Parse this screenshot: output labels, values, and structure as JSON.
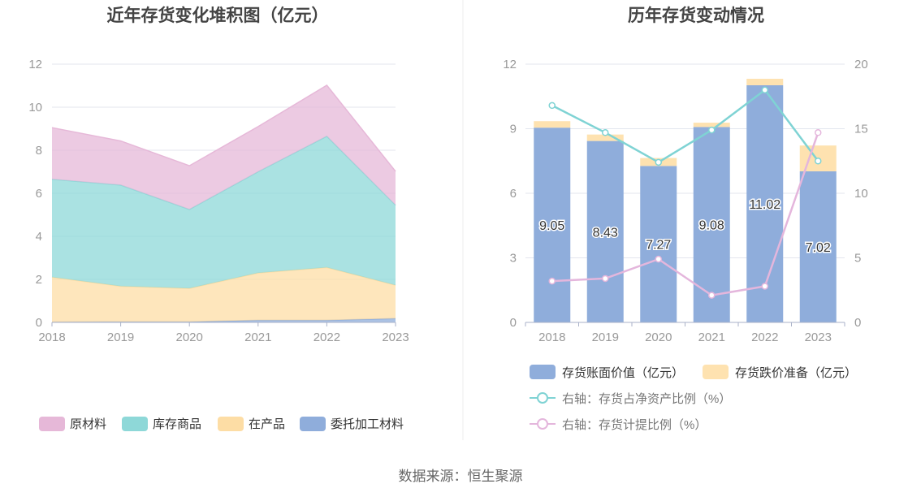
{
  "colors": {
    "raw_material": "#E6B8D8",
    "finished_goods": "#8ED8D8",
    "wip": "#FDDDA5",
    "consigned": "#8FADDB",
    "book_value_bar": "#8FADDB",
    "impairment_bar": "#FEE2B0",
    "ratio_net_assets_line": "#7FD3D4",
    "provision_ratio_line": "#E4B6DC",
    "grid": "#E3E6EE",
    "axis_text": "#999999",
    "divider": "#EEEEEE"
  },
  "source_text": "数据来源：恒生聚源",
  "chart_data": [
    {
      "type": "area",
      "title": "近年存货变化堆积图（亿元）",
      "stacked": true,
      "x": [
        "2018",
        "2019",
        "2020",
        "2021",
        "2022",
        "2023"
      ],
      "ylim": [
        0,
        12
      ],
      "yticks": [
        0,
        2,
        4,
        6,
        8,
        10,
        12
      ],
      "grid": true,
      "legend_position": "bottom",
      "series": [
        {
          "name": "委托加工材料",
          "color_key": "consigned",
          "values": [
            0.02,
            0.03,
            0.03,
            0.1,
            0.1,
            0.18
          ]
        },
        {
          "name": "在产品",
          "color_key": "wip",
          "values": [
            2.08,
            1.65,
            1.55,
            2.2,
            2.45,
            1.55
          ]
        },
        {
          "name": "库存商品",
          "color_key": "finished_goods",
          "values": [
            4.55,
            4.7,
            3.67,
            4.7,
            6.1,
            3.72
          ]
        },
        {
          "name": "原材料",
          "color_key": "raw_material",
          "values": [
            2.4,
            2.05,
            2.03,
            2.1,
            2.37,
            1.57
          ]
        }
      ],
      "legend_order": [
        "原材料",
        "库存商品",
        "在产品",
        "委托加工材料"
      ]
    },
    {
      "type": "bar",
      "title": "历年存货变动情况",
      "stacked": true,
      "categories": [
        "2018",
        "2019",
        "2020",
        "2021",
        "2022",
        "2023"
      ],
      "ylim": [
        0,
        12
      ],
      "yticks": [
        0,
        3,
        6,
        9,
        12
      ],
      "y2lim": [
        0,
        20
      ],
      "y2ticks": [
        0,
        5,
        10,
        15,
        20
      ],
      "grid": true,
      "legend_position": "bottom",
      "series": [
        {
          "name": "存货账面价值（亿元）",
          "color_key": "book_value_bar",
          "values": [
            9.05,
            8.43,
            7.27,
            9.08,
            11.02,
            7.02
          ],
          "data_labels": [
            "9.05",
            "8.43",
            "7.27",
            "9.08",
            "11.02",
            "7.02"
          ]
        },
        {
          "name": "存货跌价准备（亿元）",
          "color_key": "impairment_bar",
          "values": [
            0.3,
            0.3,
            0.37,
            0.2,
            0.3,
            1.2
          ]
        }
      ],
      "lines": [
        {
          "name": "右轴：存货占净资产比例（%）",
          "color_key": "ratio_net_assets_line",
          "axis": "right",
          "values": [
            16.8,
            14.7,
            12.4,
            14.9,
            18.0,
            12.5
          ]
        },
        {
          "name": "右轴：存货计提比例（%）",
          "color_key": "provision_ratio_line",
          "axis": "right",
          "values": [
            3.2,
            3.4,
            4.9,
            2.1,
            2.8,
            14.7
          ]
        }
      ]
    }
  ]
}
